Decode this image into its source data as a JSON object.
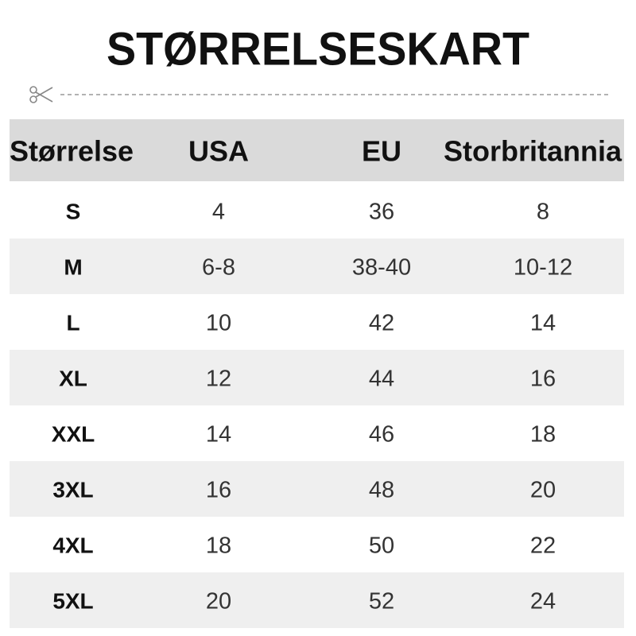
{
  "title": "STØRRELSESKART",
  "table": {
    "header": [
      "Størrelse",
      "USA",
      "EU",
      "Storbritannia"
    ],
    "rows": [
      [
        "S",
        "4",
        "36",
        "8"
      ],
      [
        "M",
        "6-8",
        "38-40",
        "10-12"
      ],
      [
        "L",
        "10",
        "42",
        "14"
      ],
      [
        "XL",
        "12",
        "44",
        "16"
      ],
      [
        "XXL",
        "14",
        "46",
        "18"
      ],
      [
        "3XL",
        "16",
        "48",
        "20"
      ],
      [
        "4XL",
        "18",
        "50",
        "22"
      ],
      [
        "5XL",
        "20",
        "52",
        "24"
      ]
    ]
  }
}
